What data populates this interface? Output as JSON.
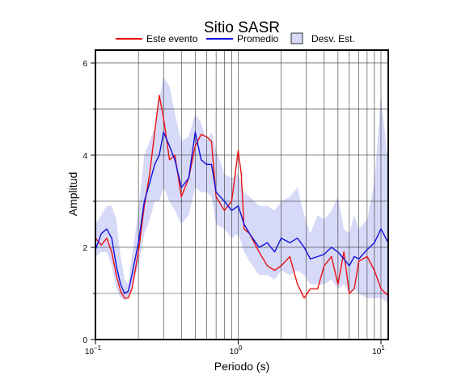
{
  "chart_data": {
    "type": "line",
    "title": "Sitio SASR",
    "x_label": "Periodo (s)",
    "y_label": "Amplitud",
    "log_x": true,
    "grid": true,
    "xlim": [
      0.1,
      11.25
    ],
    "ylim": [
      0,
      6.28
    ],
    "xticks": [
      {
        "value": 0.1,
        "label": "10",
        "exponent": "−1"
      },
      {
        "value": 1,
        "label": "10",
        "exponent": "0"
      },
      {
        "value": 10,
        "label": "10",
        "exponent": "1"
      }
    ],
    "xminor": [
      0.2,
      0.3,
      0.4,
      0.5,
      0.6,
      0.7,
      0.8,
      0.9,
      2,
      3,
      4,
      5,
      6,
      7,
      8,
      9
    ],
    "yticks": [
      0,
      2,
      4,
      6
    ],
    "yminor": [
      1,
      3,
      5
    ],
    "x": [
      0.1,
      0.11,
      0.12,
      0.13,
      0.14,
      0.15,
      0.16,
      0.17,
      0.18,
      0.2,
      0.22,
      0.24,
      0.26,
      0.28,
      0.3,
      0.33,
      0.36,
      0.4,
      0.45,
      0.5,
      0.55,
      0.6,
      0.65,
      0.7,
      0.8,
      0.9,
      1.0,
      1.05,
      1.1,
      1.2,
      1.4,
      1.6,
      1.8,
      2.0,
      2.3,
      2.6,
      2.9,
      3.2,
      3.6,
      4.0,
      4.5,
      5,
      5.5,
      6,
      6.5,
      7,
      8,
      9,
      10,
      11.25
    ],
    "band": {
      "name": "Desv. Est.",
      "color": "#d6d9f8",
      "upper": [
        2.5,
        2.7,
        2.9,
        2.9,
        2.6,
        1.8,
        1.3,
        1.2,
        1.8,
        2.8,
        4.0,
        4.3,
        4.6,
        5.2,
        5.7,
        5.5,
        4.9,
        4.3,
        4.4,
        4.9,
        4.7,
        4.3,
        4.5,
        4.1,
        3.6,
        3.5,
        3.6,
        3.4,
        3.2,
        3.1,
        2.9,
        2.9,
        2.8,
        3.0,
        3.1,
        3.3,
        2.7,
        2.3,
        2.7,
        2.6,
        2.8,
        3.1,
        2.4,
        2.3,
        2.7,
        2.4,
        2.6,
        3.4,
        5.3,
        3.8
      ],
      "lower": [
        1.8,
        1.9,
        1.9,
        1.6,
        1.1,
        0.9,
        0.85,
        0.9,
        1.1,
        1.6,
        2.3,
        2.6,
        3.0,
        3.0,
        3.3,
        3.0,
        2.8,
        2.5,
        2.7,
        3.3,
        3.2,
        3.2,
        3.1,
        2.5,
        2.4,
        2.2,
        2.3,
        2.1,
        1.9,
        1.7,
        1.4,
        1.4,
        1.3,
        1.5,
        1.4,
        1.5,
        1.4,
        1.2,
        1.2,
        1.2,
        1.3,
        1.1,
        1.2,
        1.0,
        1.1,
        1.0,
        0.9,
        0.9,
        0.9,
        0.8
      ]
    },
    "series": [
      {
        "name": "Este evento",
        "color": "#ee1111",
        "values": [
          2.2,
          2.05,
          2.2,
          1.9,
          1.4,
          1.05,
          0.9,
          0.9,
          1.1,
          1.9,
          2.9,
          3.6,
          4.5,
          5.3,
          4.8,
          3.9,
          4.0,
          3.1,
          3.5,
          4.2,
          4.45,
          4.4,
          4.3,
          3.1,
          2.8,
          3.0,
          4.1,
          3.6,
          2.4,
          2.3,
          1.9,
          1.6,
          1.5,
          1.6,
          1.8,
          1.2,
          0.9,
          1.1,
          1.1,
          1.6,
          1.8,
          1.2,
          1.9,
          1.0,
          1.1,
          1.7,
          1.8,
          1.5,
          1.1,
          0.95
        ]
      },
      {
        "name": "Promedio",
        "color": "#1111dd",
        "values": [
          1.95,
          2.3,
          2.4,
          2.2,
          1.6,
          1.2,
          1.0,
          1.05,
          1.4,
          2.1,
          3.0,
          3.4,
          3.8,
          4.0,
          4.5,
          4.2,
          3.9,
          3.3,
          3.5,
          4.5,
          3.9,
          3.8,
          3.8,
          3.2,
          3.0,
          2.8,
          2.9,
          2.7,
          2.5,
          2.3,
          2.0,
          2.1,
          1.9,
          2.2,
          2.1,
          2.2,
          2.0,
          1.75,
          1.8,
          1.85,
          2.0,
          1.9,
          1.75,
          1.6,
          1.8,
          1.75,
          1.95,
          2.1,
          2.4,
          2.1
        ]
      }
    ]
  }
}
